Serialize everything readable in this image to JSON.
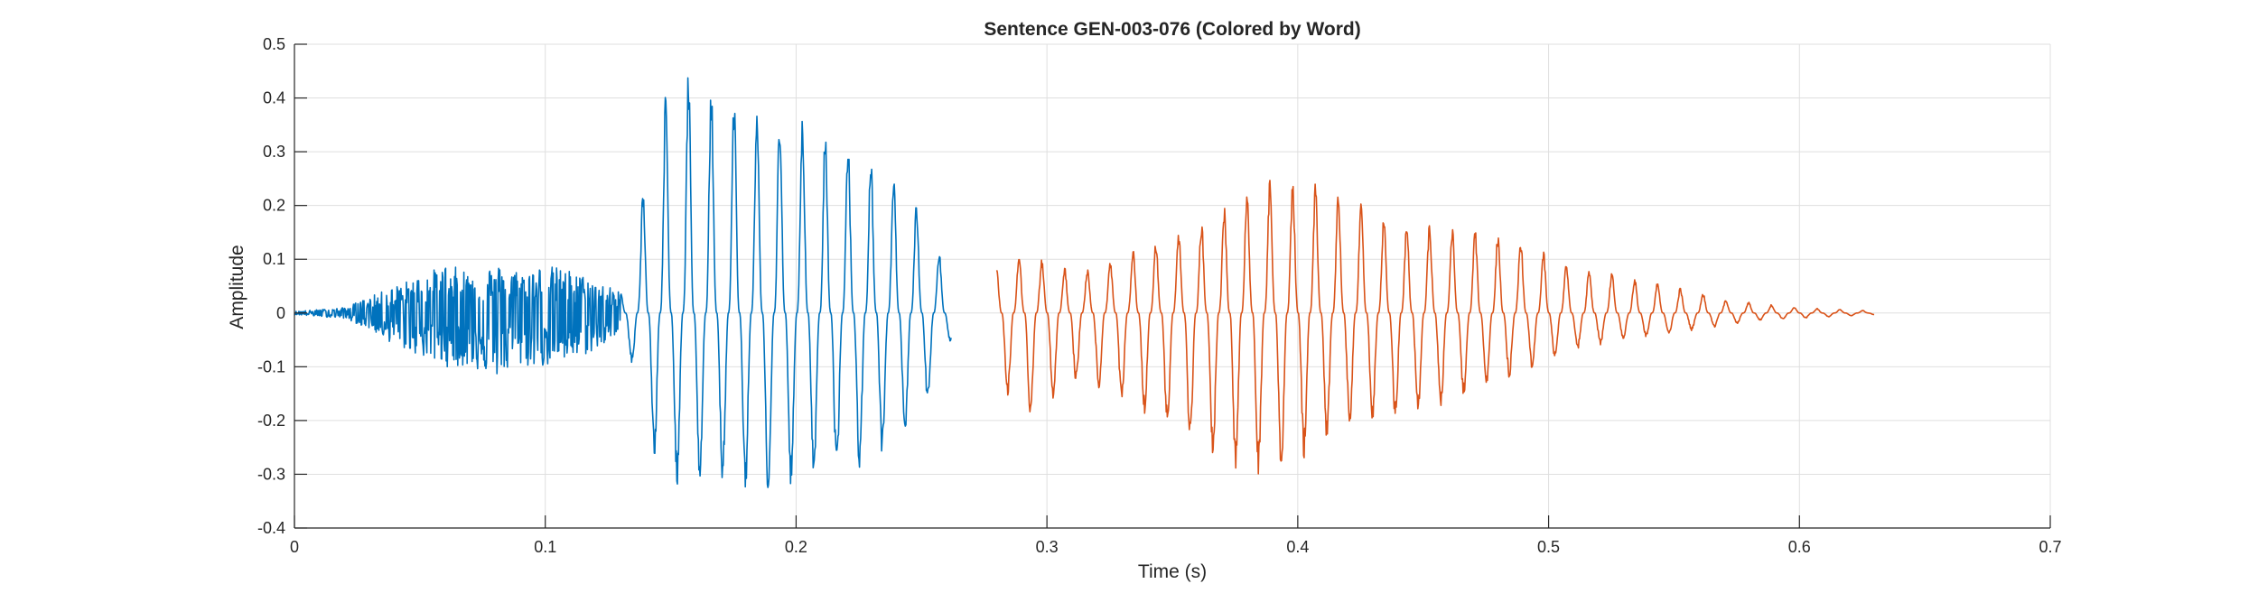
{
  "chart_data": {
    "type": "line",
    "title": "Sentence GEN-003-076 (Colored by Word)",
    "xlabel": "Time (s)",
    "ylabel": "Amplitude",
    "xlim": [
      0,
      0.7
    ],
    "ylim": [
      -0.4,
      0.5
    ],
    "xticks": [
      0,
      0.1,
      0.2,
      0.3,
      0.4,
      0.5,
      0.6,
      0.7
    ],
    "yticks": [
      -0.4,
      -0.3,
      -0.2,
      -0.1,
      0,
      0.1,
      0.2,
      0.3,
      0.4,
      0.5
    ],
    "xtick_labels": [
      "0",
      "0.1",
      "0.2",
      "0.3",
      "0.4",
      "0.5",
      "0.6",
      "0.7"
    ],
    "ytick_labels": [
      "-0.4",
      "-0.3",
      "-0.2",
      "-0.1",
      "0",
      "0.1",
      "0.2",
      "0.3",
      "0.4",
      "0.5"
    ],
    "grid": true,
    "series": [
      {
        "color": "#0072BD",
        "x": [
          0,
          0.02,
          0.03,
          0.04,
          0.05,
          0.06,
          0.07,
          0.08,
          0.09,
          0.1,
          0.11,
          0.12,
          0.13,
          0.135,
          0.14,
          0.15,
          0.16,
          0.17,
          0.18,
          0.19,
          0.2,
          0.21,
          0.22,
          0.23,
          0.24,
          0.25,
          0.262
        ],
        "envelope_upper": [
          0.003,
          0.01,
          0.03,
          0.05,
          0.07,
          0.09,
          0.08,
          0.09,
          0.08,
          0.09,
          0.08,
          0.06,
          0.04,
          0.12,
          0.26,
          0.46,
          0.45,
          0.42,
          0.42,
          0.39,
          0.38,
          0.35,
          0.33,
          0.3,
          0.26,
          0.2,
          0.06
        ],
        "envelope_lower": [
          -0.003,
          -0.01,
          -0.03,
          -0.06,
          -0.08,
          -0.1,
          -0.1,
          -0.12,
          -0.1,
          -0.1,
          -0.09,
          -0.07,
          -0.04,
          -0.1,
          -0.25,
          -0.32,
          -0.33,
          -0.32,
          -0.33,
          -0.34,
          -0.32,
          -0.31,
          -0.3,
          -0.28,
          -0.25,
          -0.2,
          -0.05
        ]
      },
      {
        "color": "#D95319",
        "x": [
          0.28,
          0.29,
          0.3,
          0.31,
          0.32,
          0.33,
          0.34,
          0.35,
          0.36,
          0.37,
          0.38,
          0.39,
          0.4,
          0.41,
          0.42,
          0.43,
          0.44,
          0.45,
          0.46,
          0.47,
          0.48,
          0.49,
          0.5,
          0.51,
          0.52,
          0.53,
          0.54,
          0.55,
          0.56,
          0.57,
          0.58,
          0.6,
          0.63
        ],
        "envelope_upper": [
          0.1,
          0.11,
          0.1,
          0.08,
          0.09,
          0.11,
          0.13,
          0.15,
          0.17,
          0.2,
          0.24,
          0.25,
          0.25,
          0.24,
          0.22,
          0.19,
          0.17,
          0.17,
          0.16,
          0.16,
          0.15,
          0.14,
          0.11,
          0.09,
          0.08,
          0.07,
          0.06,
          0.05,
          0.04,
          0.025,
          0.02,
          0.01,
          0.004
        ],
        "envelope_lower": [
          -0.12,
          -0.2,
          -0.18,
          -0.13,
          -0.14,
          -0.17,
          -0.19,
          -0.22,
          -0.25,
          -0.28,
          -0.3,
          -0.3,
          -0.28,
          -0.24,
          -0.21,
          -0.2,
          -0.2,
          -0.19,
          -0.17,
          -0.15,
          -0.13,
          -0.11,
          -0.09,
          -0.07,
          -0.06,
          -0.05,
          -0.045,
          -0.04,
          -0.03,
          -0.025,
          -0.015,
          -0.01,
          -0.003
        ]
      }
    ]
  }
}
